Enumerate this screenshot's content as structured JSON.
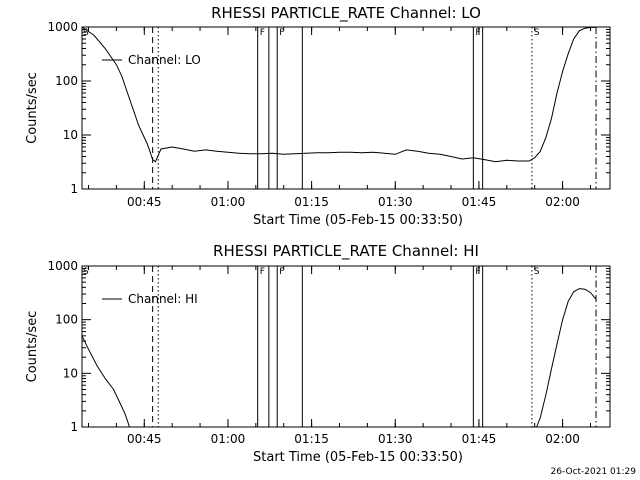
{
  "footer_text": "26-Oct-2021 01:29",
  "chart_data": [
    {
      "type": "line",
      "title": "RHESSI PARTICLE_RATE Channel: LO",
      "xlabel": "Start Time (05-Feb-15 00:33:50)",
      "ylabel": "Counts/sec",
      "yscale": "log",
      "ylim": [
        1,
        1000
      ],
      "xlim": [
        "00:33:50",
        "02:08:30"
      ],
      "x_ticks": [
        "00:45",
        "01:00",
        "01:15",
        "01:30",
        "01:45",
        "02:00"
      ],
      "y_ticks": [
        "1",
        "10",
        "100",
        "1000"
      ],
      "legend": "top-left",
      "series": [
        {
          "name": "Channel: LO",
          "x": [
            "00:33:50",
            "00:36:00",
            "00:38:00",
            "00:40:00",
            "00:41:00",
            "00:42:00",
            "00:43:00",
            "00:44:00",
            "00:45:00",
            "00:45:30",
            "00:46:00",
            "00:46:30",
            "00:47:00",
            "00:48:00",
            "00:50:00",
            "00:52:00",
            "00:54:00",
            "00:56:00",
            "00:58:00",
            "01:00:00",
            "01:02:00",
            "01:04:00",
            "01:06:00",
            "01:08:00",
            "01:10:00",
            "01:12:00",
            "01:14:00",
            "01:16:00",
            "01:18:00",
            "01:20:00",
            "01:22:00",
            "01:24:00",
            "01:26:00",
            "01:28:00",
            "01:30:00",
            "01:32:00",
            "01:34:00",
            "01:36:00",
            "01:38:00",
            "01:40:00",
            "01:42:00",
            "01:44:00",
            "01:46:00",
            "01:48:00",
            "01:50:00",
            "01:52:00",
            "01:54:00",
            "01:55:00",
            "01:56:00",
            "01:57:00",
            "01:58:00",
            "01:59:00",
            "02:00:00",
            "02:01:00",
            "02:02:00",
            "02:03:00",
            "02:04:00",
            "02:05:00",
            "02:06:00"
          ],
          "y": [
            1000,
            700,
            400,
            200,
            120,
            60,
            30,
            15,
            9,
            7,
            5,
            3.5,
            3.2,
            5.5,
            6,
            5.5,
            5,
            5.3,
            5,
            4.8,
            4.6,
            4.5,
            4.5,
            4.6,
            4.4,
            4.5,
            4.6,
            4.7,
            4.7,
            4.8,
            4.8,
            4.7,
            4.8,
            4.6,
            4.4,
            5.3,
            5,
            4.6,
            4.4,
            4,
            3.6,
            3.8,
            3.5,
            3.2,
            3.4,
            3.3,
            3.3,
            3.8,
            5,
            9,
            20,
            60,
            150,
            320,
            600,
            850,
            950,
            980,
            990
          ]
        }
      ],
      "markers": [
        {
          "x": "00:46:30",
          "style": "dashed"
        },
        {
          "x": "00:47:30",
          "style": "dotted"
        },
        {
          "x": "01:05:20",
          "style": "solid",
          "label": "F"
        },
        {
          "x": "01:07:20",
          "style": "solid"
        },
        {
          "x": "01:08:50",
          "style": "solid",
          "label": "F"
        },
        {
          "x": "01:13:20",
          "style": "solid"
        },
        {
          "x": "01:44:00",
          "style": "solid",
          "label": "F"
        },
        {
          "x": "01:45:40",
          "style": "solid"
        },
        {
          "x": "01:54:30",
          "style": "dotted",
          "label": "S"
        },
        {
          "x": "02:06:00",
          "style": "dash-dot"
        }
      ],
      "corner_label": "S"
    },
    {
      "type": "line",
      "title": "RHESSI PARTICLE_RATE Channel: HI",
      "xlabel": "Start Time (05-Feb-15 00:33:50)",
      "ylabel": "Counts/sec",
      "yscale": "log",
      "ylim": [
        1,
        1000
      ],
      "xlim": [
        "00:33:50",
        "02:08:30"
      ],
      "x_ticks": [
        "00:45",
        "01:00",
        "01:15",
        "01:30",
        "01:45",
        "02:00"
      ],
      "y_ticks": [
        "1",
        "10",
        "100",
        "1000"
      ],
      "legend": "top-left",
      "series": [
        {
          "name": "Channel: HI",
          "x": [
            "00:33:50",
            "00:35:00",
            "00:36:30",
            "00:38:00",
            "00:39:30",
            "00:40:30",
            "00:41:30",
            "00:42:00",
            "00:42:20",
            "00:43:00"
          ],
          "y": [
            50,
            28,
            14,
            8,
            5,
            3,
            1.8,
            1.3,
            1.0,
            1.0
          ]
        },
        {
          "name": "Channel: HI",
          "x": [
            "01:55:20",
            "01:56:00",
            "01:57:00",
            "01:58:00",
            "01:59:00",
            "02:00:00",
            "02:01:00",
            "02:02:00",
            "02:03:00",
            "02:04:00",
            "02:05:00",
            "02:06:00"
          ],
          "y": [
            1.0,
            1.5,
            4,
            12,
            35,
            100,
            220,
            330,
            380,
            370,
            320,
            240
          ]
        }
      ],
      "markers": [
        {
          "x": "00:46:30",
          "style": "dashed"
        },
        {
          "x": "00:47:30",
          "style": "dotted"
        },
        {
          "x": "01:05:20",
          "style": "solid",
          "label": "F"
        },
        {
          "x": "01:07:20",
          "style": "solid"
        },
        {
          "x": "01:08:50",
          "style": "solid",
          "label": "F"
        },
        {
          "x": "01:13:20",
          "style": "solid"
        },
        {
          "x": "01:44:00",
          "style": "solid",
          "label": "F"
        },
        {
          "x": "01:45:40",
          "style": "solid"
        },
        {
          "x": "01:54:30",
          "style": "dotted",
          "label": "S"
        },
        {
          "x": "02:06:00",
          "style": "dash-dot"
        }
      ],
      "corner_label": "S"
    }
  ]
}
